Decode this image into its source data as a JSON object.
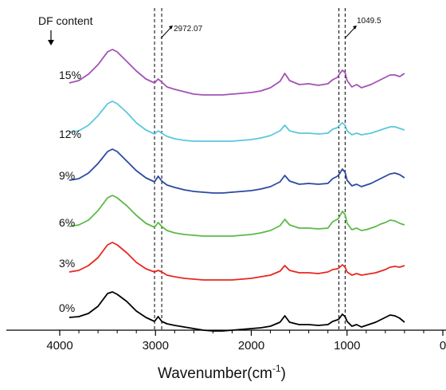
{
  "chart_data": {
    "type": "line",
    "title": "",
    "xlabel": "Wavenumber(cm",
    "xlabel_sup": "-1",
    "xlabel_close": ")",
    "ylabel": "",
    "x_reversed": true,
    "xlim": [
      4000,
      0
    ],
    "xticks": [
      4000,
      3000,
      2000,
      1000,
      0
    ],
    "xtick_labels": [
      "4000",
      "3000",
      "2000",
      "1000",
      "0"
    ],
    "legend_title": "DF content",
    "annotations": [
      {
        "text": "2972.07",
        "dashed_lines_x": [
          3010,
          2935
        ]
      },
      {
        "text": "1049.5",
        "dashed_lines_x": [
          1085,
          1020
        ]
      }
    ],
    "series": [
      {
        "name": "0%",
        "color": "#000000",
        "x": [
          3900,
          3800,
          3700,
          3600,
          3500,
          3450,
          3400,
          3300,
          3200,
          3100,
          3010,
          2972,
          2935,
          2880,
          2800,
          2700,
          2600,
          2500,
          2400,
          2300,
          2200,
          2100,
          2000,
          1900,
          1800,
          1700,
          1650,
          1600,
          1500,
          1400,
          1300,
          1200,
          1150,
          1100,
          1085,
          1049,
          1020,
          1000,
          950,
          900,
          850,
          800,
          750,
          700,
          650,
          600,
          550,
          500,
          450,
          400
        ],
        "y": [
          14,
          15,
          19,
          28,
          44,
          46,
          43,
          34,
          22,
          14,
          9,
          15,
          9,
          6,
          4,
          2,
          0,
          -2,
          -3,
          -3,
          -2,
          -1,
          0,
          1,
          3,
          8,
          16,
          8,
          5,
          5,
          4,
          5,
          9,
          11,
          12,
          18,
          15,
          9,
          3,
          5,
          2,
          4,
          6,
          8,
          11,
          14,
          17,
          16,
          13,
          8
        ]
      },
      {
        "name": "3%",
        "color": "#e8271f",
        "x": [
          3900,
          3800,
          3700,
          3600,
          3500,
          3450,
          3400,
          3300,
          3200,
          3100,
          3010,
          2972,
          2935,
          2880,
          2800,
          2700,
          2600,
          2500,
          2400,
          2300,
          2200,
          2100,
          2000,
          1900,
          1800,
          1700,
          1650,
          1600,
          1500,
          1400,
          1300,
          1200,
          1150,
          1100,
          1085,
          1049,
          1020,
          1000,
          950,
          900,
          850,
          800,
          750,
          700,
          650,
          600,
          550,
          500,
          450,
          400
        ],
        "y": [
          72,
          74,
          80,
          90,
          106,
          109,
          106,
          96,
          84,
          76,
          72,
          74,
          72,
          68,
          66,
          64,
          63,
          62,
          62,
          62,
          62,
          63,
          64,
          66,
          68,
          73,
          80,
          74,
          71,
          71,
          70,
          72,
          75,
          76,
          77,
          81,
          78,
          72,
          68,
          70,
          68,
          69,
          70,
          71,
          73,
          75,
          78,
          79,
          78,
          80
        ]
      },
      {
        "name": "6%",
        "color": "#5cb947",
        "x": [
          3900,
          3800,
          3700,
          3600,
          3500,
          3450,
          3400,
          3300,
          3200,
          3100,
          3010,
          2972,
          2935,
          2880,
          2800,
          2700,
          2600,
          2500,
          2400,
          2300,
          2200,
          2100,
          2000,
          1900,
          1800,
          1700,
          1650,
          1600,
          1500,
          1400,
          1300,
          1200,
          1150,
          1100,
          1085,
          1049,
          1020,
          1000,
          950,
          900,
          850,
          800,
          750,
          700,
          650,
          600,
          550,
          500,
          450,
          400
        ],
        "y": [
          126,
          128,
          134,
          146,
          162,
          165,
          162,
          152,
          140,
          130,
          125,
          131,
          126,
          121,
          118,
          116,
          115,
          114,
          114,
          114,
          114,
          115,
          116,
          118,
          121,
          127,
          135,
          128,
          124,
          124,
          123,
          124,
          132,
          135,
          137,
          145,
          141,
          130,
          122,
          124,
          121,
          122,
          124,
          126,
          129,
          131,
          134,
          133,
          130,
          128
        ]
      },
      {
        "name": "9%",
        "color": "#2b4aa0",
        "x": [
          3900,
          3800,
          3700,
          3600,
          3500,
          3450,
          3400,
          3300,
          3200,
          3100,
          3010,
          2972,
          2935,
          2880,
          2800,
          2700,
          2600,
          2500,
          2400,
          2300,
          2200,
          2100,
          2000,
          1900,
          1800,
          1700,
          1650,
          1600,
          1500,
          1400,
          1300,
          1200,
          1150,
          1100,
          1085,
          1049,
          1020,
          1000,
          950,
          900,
          850,
          800,
          750,
          700,
          650,
          600,
          550,
          500,
          450,
          400
        ],
        "y": [
          184,
          186,
          193,
          205,
          220,
          223,
          220,
          208,
          196,
          187,
          182,
          189,
          183,
          178,
          175,
          172,
          170,
          169,
          168,
          168,
          169,
          170,
          171,
          173,
          176,
          182,
          190,
          183,
          179,
          180,
          179,
          180,
          186,
          189,
          191,
          198,
          194,
          184,
          177,
          179,
          176,
          178,
          180,
          183,
          186,
          189,
          192,
          193,
          191,
          187
        ]
      },
      {
        "name": "12%",
        "color": "#5bc8dd",
        "x": [
          3900,
          3800,
          3700,
          3600,
          3500,
          3450,
          3400,
          3300,
          3200,
          3100,
          3010,
          2972,
          2935,
          2880,
          2800,
          2700,
          2600,
          2500,
          2400,
          2300,
          2200,
          2100,
          2000,
          1900,
          1800,
          1700,
          1650,
          1600,
          1500,
          1400,
          1300,
          1200,
          1150,
          1100,
          1085,
          1049,
          1020,
          1000,
          950,
          900,
          850,
          800,
          750,
          700,
          650,
          600,
          550,
          500,
          450,
          400
        ],
        "y": [
          241,
          243,
          250,
          262,
          277,
          280,
          277,
          266,
          253,
          244,
          239,
          243,
          240,
          236,
          233,
          231,
          230,
          230,
          230,
          230,
          230,
          231,
          232,
          234,
          237,
          243,
          250,
          243,
          240,
          240,
          239,
          240,
          245,
          247,
          249,
          253,
          250,
          243,
          238,
          240,
          238,
          239,
          240,
          242,
          244,
          246,
          248,
          248,
          246,
          244
        ]
      },
      {
        "name": "15%",
        "color": "#a352b4",
        "x": [
          3900,
          3800,
          3700,
          3600,
          3500,
          3450,
          3400,
          3300,
          3200,
          3100,
          3010,
          2972,
          2935,
          2880,
          2800,
          2700,
          2600,
          2500,
          2400,
          2300,
          2200,
          2100,
          2000,
          1900,
          1800,
          1700,
          1650,
          1600,
          1500,
          1400,
          1300,
          1200,
          1150,
          1100,
          1085,
          1049,
          1020,
          1000,
          950,
          900,
          850,
          800,
          750,
          700,
          650,
          600,
          550,
          500,
          450,
          400
        ],
        "y": [
          295,
          298,
          306,
          318,
          334,
          337,
          334,
          322,
          310,
          300,
          295,
          300,
          296,
          290,
          287,
          284,
          281,
          280,
          280,
          280,
          281,
          282,
          283,
          285,
          289,
          297,
          307,
          298,
          293,
          294,
          292,
          294,
          299,
          302,
          305,
          311,
          308,
          298,
          290,
          293,
          289,
          291,
          293,
          296,
          299,
          302,
          305,
          305,
          303,
          307
        ]
      }
    ]
  }
}
